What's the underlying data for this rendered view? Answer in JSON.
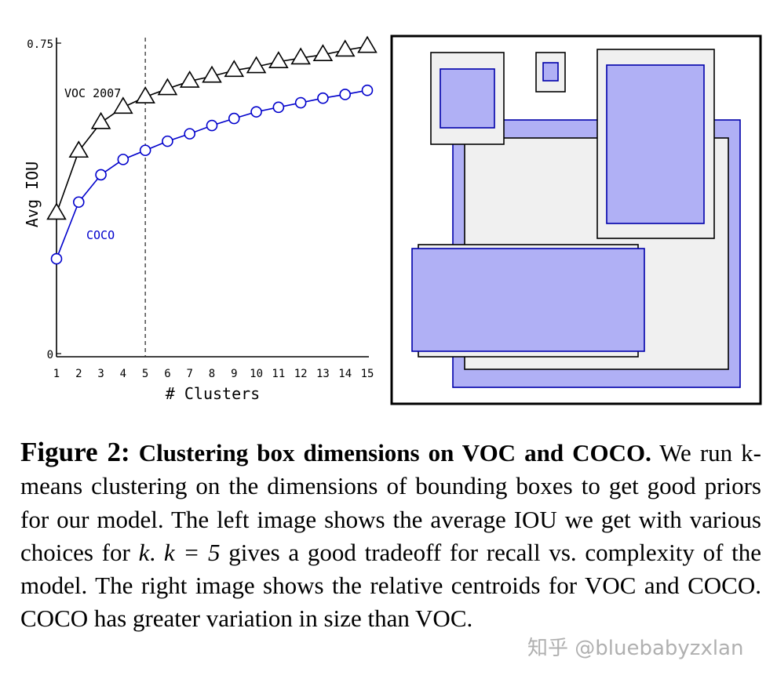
{
  "chart_data": [
    {
      "type": "line",
      "xlabel": "# Clusters",
      "ylabel": "Avg IOU",
      "x": [
        1,
        2,
        3,
        4,
        5,
        6,
        7,
        8,
        9,
        10,
        11,
        12,
        13,
        14,
        15
      ],
      "y_tick_labels": [
        "0",
        "0.75"
      ],
      "ylim": [
        0,
        0.75
      ],
      "xlim": [
        1,
        15
      ],
      "marked_x": 5,
      "series": [
        {
          "name": "VOC 2007",
          "marker": "triangle",
          "color": "#000000",
          "values": [
            0.339,
            0.489,
            0.558,
            0.595,
            0.62,
            0.64,
            0.658,
            0.67,
            0.684,
            0.693,
            0.705,
            0.714,
            0.722,
            0.733,
            0.742
          ]
        },
        {
          "name": "COCO",
          "marker": "circle",
          "color": "#0000cc",
          "values": [
            0.229,
            0.366,
            0.432,
            0.469,
            0.491,
            0.513,
            0.531,
            0.551,
            0.568,
            0.584,
            0.595,
            0.606,
            0.617,
            0.626,
            0.636
          ]
        }
      ]
    }
  ],
  "centroid_panel": {
    "voc_color": "#f0f0f0",
    "coco_color": "#b0b0f5",
    "coco_edge": "#0000aa"
  },
  "caption": {
    "figure_label": "Figure 2:",
    "figure_title": "Clustering box dimensions on VOC and COCO.",
    "text_1": "We run k-means clustering on the dimensions of bounding boxes to get good priors for our model. The left image shows the average IOU we get with various choices for",
    "math_k": "k",
    "text_2": ".",
    "math_k5": "k = 5",
    "text_3": "gives a good tradeoff for recall vs. complexity of the model. The right image shows the relative centroids for VOC and COCO. COCO has greater variation in size than VOC."
  },
  "watermark": "知乎 @bluebabyzxlan"
}
